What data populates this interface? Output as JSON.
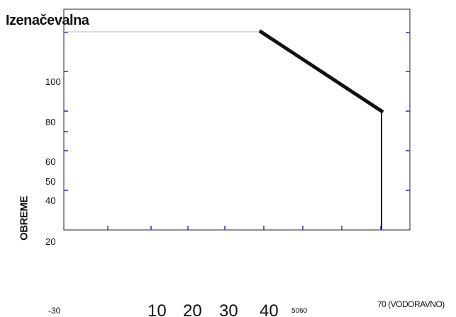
{
  "chart_data": {
    "type": "line",
    "title": "Izenačevalna",
    "ylabel": "OBREME",
    "xlabel_parts": {
      "minus": "-30",
      "big": [
        "10",
        "20",
        "30",
        "40"
      ],
      "small": "5060",
      "end": "70 (VODORAVNO)"
    },
    "y_tick_labels": [
      "100",
      "80",
      "60",
      "50",
      "40",
      "20"
    ],
    "xlim": [
      0,
      80
    ],
    "ylim": [
      20,
      124
    ],
    "series": [
      {
        "color": "#111111",
        "points": [
          [
            0,
            120
          ],
          [
            40,
            120
          ],
          [
            75,
            80
          ],
          [
            75,
            20
          ]
        ]
      }
    ]
  }
}
